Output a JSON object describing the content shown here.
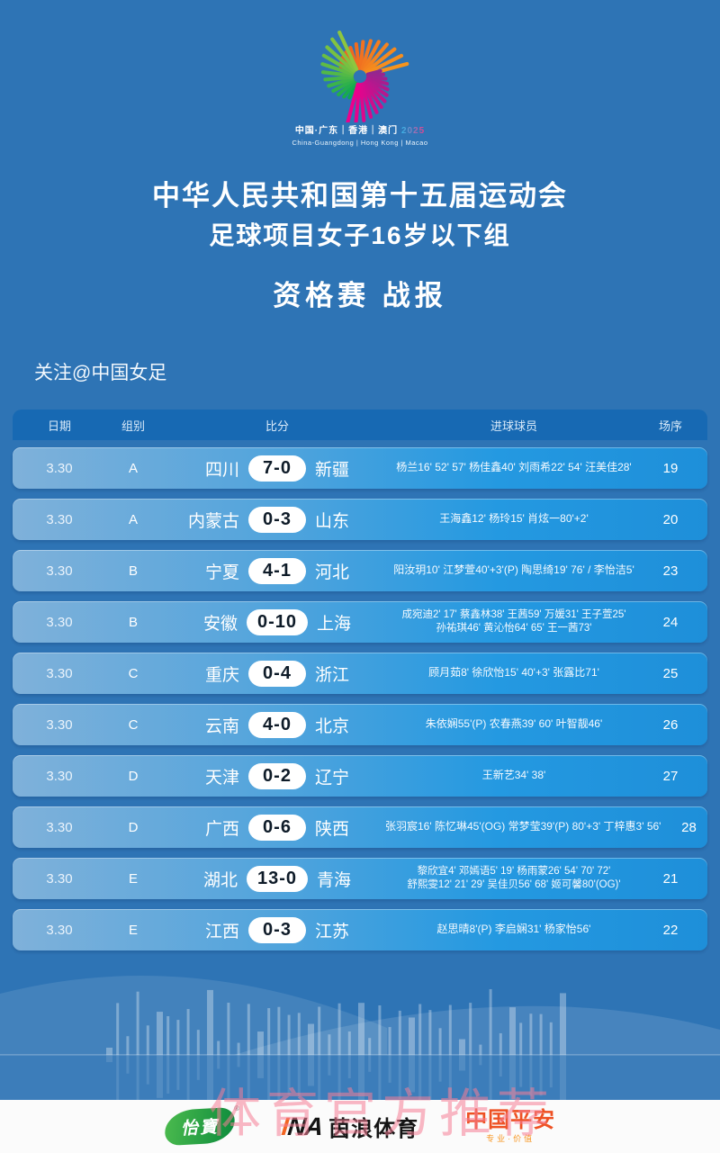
{
  "logo": {
    "tagline_cn": "中国·广东｜香港｜澳门",
    "tagline_year": "2025",
    "tagline_en": "China-Guangdong | Hong Kong | Macao"
  },
  "header": {
    "title_line1": "中华人民共和国第十五届运动会",
    "title_line2": "足球项目女子16岁以下组",
    "title_line3": "资格赛 战报",
    "follow": "关注@中国女足"
  },
  "table": {
    "columns": [
      "日期",
      "组别",
      "比分",
      "进球球员",
      "场序"
    ],
    "rows": [
      {
        "date": "3.30",
        "group": "A",
        "home": "四川",
        "score": "7-0",
        "away": "新疆",
        "scorers": [
          "杨兰16' 52' 57' 杨佳鑫40' 刘雨希22' 54' 汪美佳28'"
        ],
        "match_no": "19"
      },
      {
        "date": "3.30",
        "group": "A",
        "home": "内蒙古",
        "score": "0-3",
        "away": "山东",
        "scorers": [
          "王海鑫12' 杨玲15' 肖炫一80'+2'"
        ],
        "match_no": "20"
      },
      {
        "date": "3.30",
        "group": "B",
        "home": "宁夏",
        "score": "4-1",
        "away": "河北",
        "scorers": [
          "阳汝玥10' 江梦萱40'+3'(P) 陶思绮19' 76' / 李怡洁5'"
        ],
        "match_no": "23"
      },
      {
        "date": "3.30",
        "group": "B",
        "home": "安徽",
        "score": "0-10",
        "away": "上海",
        "scorers": [
          "成宛迪2' 17' 蔡鑫林38' 王茜59' 万媛31' 王子萱25'",
          "孙祐琪46' 黄沁怡64' 65' 王一茜73'"
        ],
        "match_no": "24"
      },
      {
        "date": "3.30",
        "group": "C",
        "home": "重庆",
        "score": "0-4",
        "away": "浙江",
        "scorers": [
          "顾月茹8' 徐欣怡15' 40'+3' 张露比71'"
        ],
        "match_no": "25"
      },
      {
        "date": "3.30",
        "group": "C",
        "home": "云南",
        "score": "4-0",
        "away": "北京",
        "scorers": [
          "朱依娴55'(P) 农春燕39' 60' 叶智靓46'"
        ],
        "match_no": "26"
      },
      {
        "date": "3.30",
        "group": "D",
        "home": "天津",
        "score": "0-2",
        "away": "辽宁",
        "scorers": [
          "王新艺34' 38'"
        ],
        "match_no": "27"
      },
      {
        "date": "3.30",
        "group": "D",
        "home": "广西",
        "score": "0-6",
        "away": "陕西",
        "scorers": [
          "张羽宸16' 陈忆琳45'(OG) 常梦莹39'(P) 80'+3' 丁梓惠3' 56'"
        ],
        "match_no": "28"
      },
      {
        "date": "3.30",
        "group": "E",
        "home": "湖北",
        "score": "13-0",
        "away": "青海",
        "scorers": [
          "黎欣宜4' 邓嫣语5' 19' 杨雨蒙26' 54' 70' 72'",
          "舒熙雯12' 21' 29' 吴佳贝56' 68' 姬可馨80'(OG)'"
        ],
        "match_no": "21"
      },
      {
        "date": "3.30",
        "group": "E",
        "home": "江西",
        "score": "0-3",
        "away": "江苏",
        "scorers": [
          "赵思晴8'(P) 李启娴31' 杨家怡56'"
        ],
        "match_no": "22"
      }
    ]
  },
  "footer": {
    "watermark": "体育官方推荐",
    "sponsors": {
      "cestbon": {
        "label": "怡寶",
        "reg": "®"
      },
      "ina": {
        "prefix": "INA",
        "label": "茵浪体育"
      },
      "pingan": {
        "label": "中国平安",
        "sub": "专业·价值"
      }
    }
  },
  "colors": {
    "page_bg": "#2E74B5",
    "table_header_bg": "#1769B3",
    "row_gradient_left": "#7FB1DA",
    "row_gradient_right": "#1E8FD9",
    "score_pill_bg": "#FFFFFF",
    "watermark_pink": "#F67E96",
    "cestbon_green": "#0B8A3C",
    "ina_orange": "#F26522",
    "pingan_orange": "#EE5123"
  }
}
